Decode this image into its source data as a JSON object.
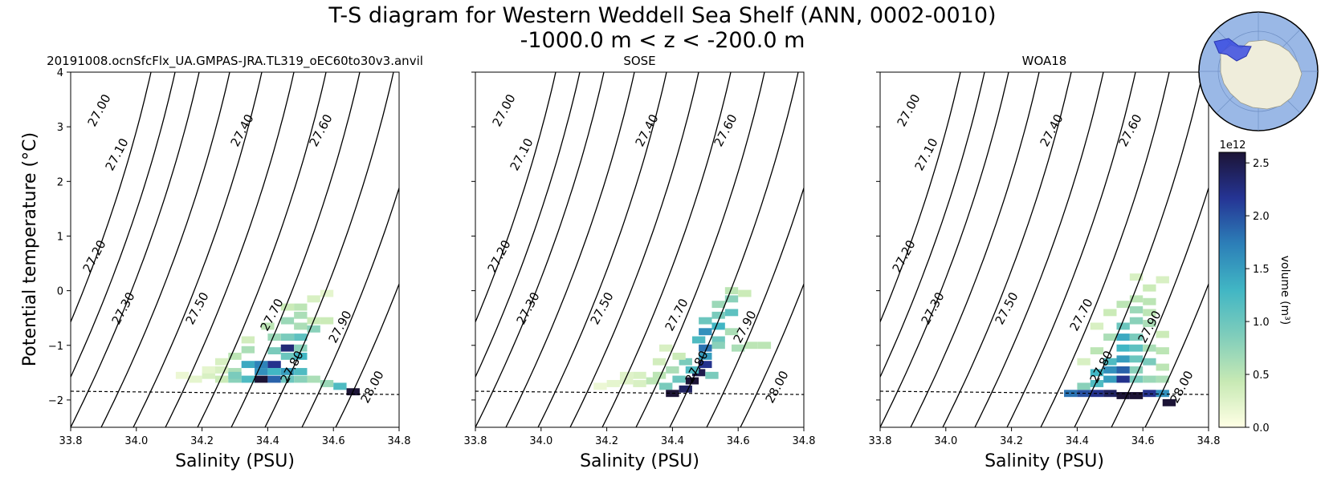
{
  "title": {
    "line1": "T-S diagram for Western Weddell Sea Shelf (ANN, 0002-0010)",
    "line2": "-1000.0 m < z < -200.0 m"
  },
  "colorbar": {
    "label": "volume (m³)",
    "exponent": "1e12",
    "ticks": [
      "0.0",
      "0.5",
      "1.0",
      "1.5",
      "2.0",
      "2.5"
    ],
    "max": 2.6,
    "colors": [
      "#ffffe5",
      "#c7e9b4",
      "#7fcdbb",
      "#41b6c4",
      "#2c7fb8",
      "#253494",
      "#1c1436"
    ]
  },
  "inset_map": {
    "region": "Western Weddell Sea Shelf",
    "ocean_color": "#9ab8e6",
    "land_color": "#efeddb",
    "region_color": "#3a4be0"
  },
  "chart_data": [
    {
      "type": "heatmap",
      "title": "20191008.ocnSfcFlx_UA.GMPAS-JRA.TL319_oEC60to30v3.anvil",
      "xlabel": "Salinity (PSU)",
      "ylabel": "Potential temperature (°C)",
      "xlim": [
        33.8,
        34.8
      ],
      "ylim": [
        -2.5,
        4
      ],
      "xticks": [
        "33.8",
        "34.0",
        "34.2",
        "34.4",
        "34.6",
        "34.8"
      ],
      "yticks": [
        "−2",
        "−1",
        "0",
        "1",
        "2",
        "3",
        "4"
      ],
      "freezing_line": [
        [
          33.8,
          -1.84
        ],
        [
          34.8,
          -1.9
        ]
      ],
      "density_contours": [
        "27.00",
        "27.10",
        "27.20",
        "27.30",
        "27.40",
        "27.50",
        "27.60",
        "27.70",
        "27.80",
        "27.90",
        "28.00"
      ],
      "cells": [
        [
          34.14,
          -1.55,
          0.15
        ],
        [
          34.18,
          -1.62,
          0.2
        ],
        [
          34.22,
          -1.55,
          0.3
        ],
        [
          34.26,
          -1.62,
          0.4
        ],
        [
          34.22,
          -1.45,
          0.2
        ],
        [
          34.26,
          -1.45,
          0.3
        ],
        [
          34.3,
          -1.62,
          0.8
        ],
        [
          34.3,
          -1.48,
          0.6
        ],
        [
          34.34,
          -1.62,
          1.2
        ],
        [
          34.38,
          -1.62,
          2.6
        ],
        [
          34.42,
          -1.62,
          1.9
        ],
        [
          34.38,
          -1.48,
          1.6
        ],
        [
          34.42,
          -1.48,
          1.3
        ],
        [
          34.46,
          -1.48,
          1.5
        ],
        [
          34.5,
          -1.48,
          1.2
        ],
        [
          34.34,
          -1.35,
          1.4
        ],
        [
          34.38,
          -1.35,
          1.7
        ],
        [
          34.42,
          -1.35,
          2.2
        ],
        [
          34.46,
          -1.2,
          1.0
        ],
        [
          34.5,
          -1.2,
          1.3
        ],
        [
          34.42,
          -1.1,
          0.9
        ],
        [
          34.46,
          -1.05,
          2.3
        ],
        [
          34.5,
          -1.05,
          0.8
        ],
        [
          34.42,
          -0.85,
          0.7
        ],
        [
          34.46,
          -0.85,
          0.9
        ],
        [
          34.5,
          -0.85,
          1.1
        ],
        [
          34.4,
          -0.65,
          0.5
        ],
        [
          34.46,
          -0.55,
          0.7
        ],
        [
          34.5,
          -0.45,
          0.6
        ],
        [
          34.54,
          -0.55,
          0.4
        ],
        [
          34.46,
          -0.3,
          0.4
        ],
        [
          34.5,
          -0.3,
          0.5
        ],
        [
          34.54,
          -0.15,
          0.3
        ],
        [
          34.58,
          -0.05,
          0.2
        ],
        [
          34.54,
          -0.7,
          0.8
        ],
        [
          34.58,
          -0.55,
          0.4
        ],
        [
          34.54,
          -1.62,
          0.6
        ],
        [
          34.58,
          -1.7,
          0.7
        ],
        [
          34.62,
          -1.75,
          1.2
        ],
        [
          34.66,
          -1.85,
          2.6
        ],
        [
          34.34,
          -1.08,
          0.6
        ],
        [
          34.3,
          -1.2,
          0.5
        ],
        [
          34.26,
          -1.3,
          0.3
        ],
        [
          34.34,
          -0.9,
          0.35
        ],
        [
          34.5,
          -0.65,
          0.6
        ],
        [
          34.3,
          -1.55,
          0.9
        ],
        [
          34.46,
          -1.62,
          1.0
        ],
        [
          34.5,
          -1.62,
          0.8
        ]
      ]
    },
    {
      "type": "heatmap",
      "title": "SOSE",
      "xlabel": "Salinity (PSU)",
      "xlim": [
        33.8,
        34.8
      ],
      "ylim": [
        -2.5,
        4
      ],
      "xticks": [
        "33.8",
        "34.0",
        "34.2",
        "34.4",
        "34.6",
        "34.8"
      ],
      "freezing_line": [
        [
          33.8,
          -1.84
        ],
        [
          34.8,
          -1.9
        ]
      ],
      "density_contours": [
        "27.00",
        "27.10",
        "27.20",
        "27.30",
        "27.40",
        "27.50",
        "27.60",
        "27.70",
        "27.80",
        "27.90",
        "28.00"
      ],
      "cells": [
        [
          34.18,
          -1.75,
          0.15
        ],
        [
          34.22,
          -1.7,
          0.2
        ],
        [
          34.26,
          -1.65,
          0.25
        ],
        [
          34.3,
          -1.7,
          0.3
        ],
        [
          34.34,
          -1.65,
          0.5
        ],
        [
          34.3,
          -1.55,
          0.3
        ],
        [
          34.38,
          -1.75,
          0.9
        ],
        [
          34.4,
          -1.88,
          2.6
        ],
        [
          34.44,
          -1.8,
          2.4
        ],
        [
          34.46,
          -1.65,
          2.6
        ],
        [
          34.48,
          -1.5,
          2.5
        ],
        [
          34.5,
          -1.35,
          2.2
        ],
        [
          34.42,
          -1.62,
          1.0
        ],
        [
          34.46,
          -1.45,
          1.2
        ],
        [
          34.44,
          -1.3,
          0.9
        ],
        [
          34.5,
          -1.2,
          1.5
        ],
        [
          34.5,
          -1.05,
          1.8
        ],
        [
          34.48,
          -0.9,
          1.2
        ],
        [
          34.54,
          -0.9,
          1.0
        ],
        [
          34.5,
          -0.75,
          1.6
        ],
        [
          34.54,
          -0.65,
          1.3
        ],
        [
          34.5,
          -0.55,
          1.0
        ],
        [
          34.54,
          -0.45,
          0.9
        ],
        [
          34.58,
          -0.4,
          1.1
        ],
        [
          34.54,
          -0.25,
          0.7
        ],
        [
          34.58,
          -0.15,
          0.8
        ],
        [
          34.58,
          0.0,
          0.5
        ],
        [
          34.62,
          -0.05,
          0.4
        ],
        [
          34.54,
          -1.0,
          0.8
        ],
        [
          34.4,
          -1.45,
          0.6
        ],
        [
          34.36,
          -1.55,
          0.5
        ],
        [
          34.26,
          -1.55,
          0.25
        ],
        [
          34.6,
          -1.05,
          0.6
        ],
        [
          34.64,
          -1.0,
          0.5
        ],
        [
          34.68,
          -1.0,
          0.5
        ],
        [
          34.52,
          -1.55,
          0.9
        ],
        [
          34.36,
          -1.3,
          0.35
        ],
        [
          34.42,
          -1.2,
          0.4
        ],
        [
          34.38,
          -1.05,
          0.3
        ],
        [
          34.58,
          -0.75,
          0.6
        ]
      ]
    },
    {
      "type": "heatmap",
      "title": "WOA18",
      "xlabel": "Salinity (PSU)",
      "xlim": [
        33.8,
        34.8
      ],
      "ylim": [
        -2.5,
        4
      ],
      "xticks": [
        "33.8",
        "34.0",
        "34.2",
        "34.4",
        "34.6",
        "34.8"
      ],
      "freezing_line": [
        [
          33.8,
          -1.84
        ],
        [
          34.8,
          -1.9
        ]
      ],
      "density_contours": [
        "27.00",
        "27.10",
        "27.20",
        "27.30",
        "27.40",
        "27.50",
        "27.60",
        "27.70",
        "27.80",
        "27.90",
        "28.00"
      ],
      "cells": [
        [
          34.38,
          -1.88,
          1.8
        ],
        [
          34.42,
          -1.88,
          2.0
        ],
        [
          34.46,
          -1.88,
          2.2
        ],
        [
          34.5,
          -1.88,
          2.4
        ],
        [
          34.54,
          -1.92,
          2.6
        ],
        [
          34.58,
          -1.92,
          2.6
        ],
        [
          34.62,
          -1.88,
          2.2
        ],
        [
          34.66,
          -1.88,
          1.6
        ],
        [
          34.68,
          -2.05,
          2.6
        ],
        [
          34.42,
          -1.75,
          0.8
        ],
        [
          34.46,
          -1.7,
          1.2
        ],
        [
          34.5,
          -1.62,
          1.5
        ],
        [
          34.54,
          -1.62,
          2.2
        ],
        [
          34.58,
          -1.62,
          0.9
        ],
        [
          34.62,
          -1.62,
          0.7
        ],
        [
          34.66,
          -1.62,
          0.6
        ],
        [
          34.46,
          -1.5,
          1.3
        ],
        [
          34.5,
          -1.45,
          1.6
        ],
        [
          34.54,
          -1.45,
          1.9
        ],
        [
          34.58,
          -1.45,
          0.8
        ],
        [
          34.5,
          -1.3,
          1.2
        ],
        [
          34.54,
          -1.25,
          1.5
        ],
        [
          34.58,
          -1.25,
          1.0
        ],
        [
          34.54,
          -1.05,
          1.3
        ],
        [
          34.58,
          -1.05,
          1.1
        ],
        [
          34.54,
          -0.85,
          1.4
        ],
        [
          34.58,
          -0.85,
          0.9
        ],
        [
          34.54,
          -0.65,
          1.0
        ],
        [
          34.58,
          -0.55,
          0.8
        ],
        [
          34.62,
          -0.6,
          0.6
        ],
        [
          34.58,
          -0.35,
          0.7
        ],
        [
          34.62,
          -0.2,
          0.5
        ],
        [
          34.58,
          -0.15,
          0.5
        ],
        [
          34.62,
          0.05,
          0.4
        ],
        [
          34.66,
          0.2,
          0.3
        ],
        [
          34.5,
          -0.85,
          0.6
        ],
        [
          34.46,
          -1.1,
          0.5
        ],
        [
          34.42,
          -1.3,
          0.3
        ],
        [
          34.62,
          -1.05,
          0.6
        ],
        [
          34.66,
          -0.8,
          0.4
        ],
        [
          34.62,
          -1.3,
          0.9
        ],
        [
          34.66,
          -1.4,
          0.5
        ],
        [
          34.5,
          -0.4,
          0.4
        ],
        [
          34.54,
          -0.25,
          0.5
        ],
        [
          34.58,
          0.25,
          0.3
        ],
        [
          34.62,
          -0.4,
          0.5
        ],
        [
          34.46,
          -0.65,
          0.3
        ],
        [
          34.66,
          -1.1,
          0.5
        ]
      ]
    }
  ]
}
